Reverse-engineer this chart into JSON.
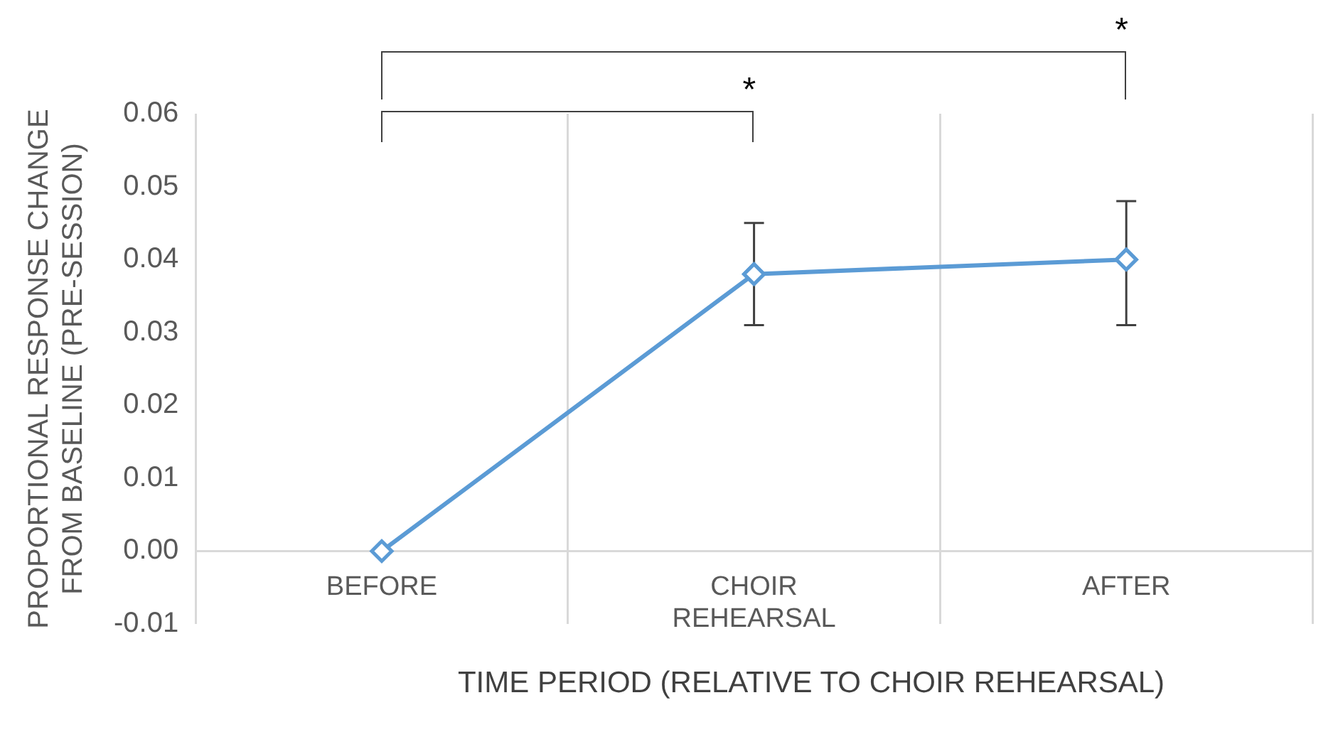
{
  "chart_data": {
    "type": "line",
    "xlabel": "TIME PERIOD (RELATIVE TO CHOIR REHEARSAL)",
    "ylabel": "PROPORTIONAL RESPONSE CHANGE FROM BASELINE (PRE-SESSION)",
    "categories": [
      "BEFORE",
      "CHOIR REHEARSAL",
      "AFTER"
    ],
    "series": [
      {
        "color": "#5b9bd5",
        "values": [
          0,
          0.038,
          0.04
        ],
        "errors": [
          null,
          [
            0.031,
            0.045
          ],
          [
            0.031,
            0.048
          ]
        ]
      }
    ],
    "ylim": [
      -0.01,
      0.06
    ],
    "yticks": [
      {
        "value": -0.01,
        "label": "-0.01"
      },
      {
        "value": 0,
        "label": "0.00"
      },
      {
        "value": 0.01,
        "label": "0.01"
      },
      {
        "value": 0.02,
        "label": "0.02"
      },
      {
        "value": 0.03,
        "label": "0.03"
      },
      {
        "value": 0.04,
        "label": "0.04"
      },
      {
        "value": 0.05,
        "label": "0.05"
      },
      {
        "value": 0.06,
        "label": "0.06"
      }
    ],
    "grid": "x",
    "marker": "diamond",
    "line_style": "solid",
    "legend": false,
    "annotations": [
      "*",
      "*"
    ]
  }
}
